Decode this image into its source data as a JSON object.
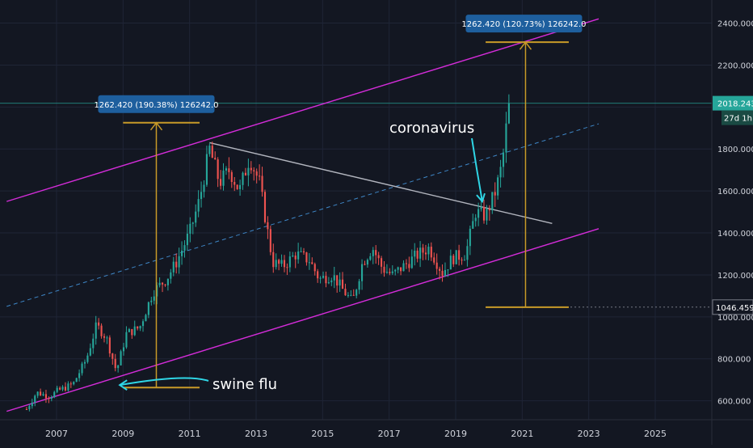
{
  "chart_data": {
    "type": "candlestick",
    "timeframe": "monthly",
    "y_axis": {
      "ticks": [
        600,
        800,
        1000,
        1200,
        1400,
        1600,
        1800,
        2000,
        2200,
        2400
      ],
      "tick_labels": [
        "600.000",
        "800.000",
        "1000.000",
        "1200.000",
        "1400.000",
        "1600.000",
        "1800.000",
        "2000.000",
        "2200.000",
        "2400.000"
      ],
      "range": [
        510,
        2510
      ]
    },
    "x_axis": {
      "ticks": [
        2007,
        2009,
        2011,
        2013,
        2015,
        2017,
        2019,
        2021,
        2023,
        2025
      ],
      "tick_labels": [
        "2007",
        "2009",
        "2011",
        "2013",
        "2015",
        "2017",
        "2019",
        "2021",
        "2023",
        "2025"
      ],
      "range": [
        2005.3,
        2026.7
      ]
    },
    "price_label": "2018.243",
    "countdown_label": "27d 1h",
    "level_label": "1046.459",
    "level_value": 1046.459,
    "last_price": 2018.243,
    "price_keypoints": [
      [
        2006.1,
        560
      ],
      [
        2006.4,
        640
      ],
      [
        2006.8,
        620
      ],
      [
        2007.0,
        645
      ],
      [
        2007.5,
        680
      ],
      [
        2007.9,
        800
      ],
      [
        2008.2,
        960
      ],
      [
        2008.5,
        900
      ],
      [
        2008.8,
        740
      ],
      [
        2009.1,
        920
      ],
      [
        2009.5,
        950
      ],
      [
        2009.9,
        1120
      ],
      [
        2010.3,
        1180
      ],
      [
        2010.6,
        1260
      ],
      [
        2011.0,
        1400
      ],
      [
        2011.3,
        1560
      ],
      [
        2011.6,
        1800
      ],
      [
        2011.9,
        1640
      ],
      [
        2012.2,
        1700
      ],
      [
        2012.5,
        1600
      ],
      [
        2012.8,
        1760
      ],
      [
        2013.1,
        1640
      ],
      [
        2013.3,
        1450
      ],
      [
        2013.5,
        1260
      ],
      [
        2013.8,
        1240
      ],
      [
        2014.2,
        1300
      ],
      [
        2014.6,
        1270
      ],
      [
        2014.9,
        1180
      ],
      [
        2015.3,
        1200
      ],
      [
        2015.6,
        1130
      ],
      [
        2015.9,
        1070
      ],
      [
        2016.2,
        1260
      ],
      [
        2016.5,
        1330
      ],
      [
        2016.8,
        1230
      ],
      [
        2017.1,
        1200
      ],
      [
        2017.5,
        1250
      ],
      [
        2017.8,
        1290
      ],
      [
        2018.2,
        1330
      ],
      [
        2018.6,
        1210
      ],
      [
        2018.9,
        1280
      ],
      [
        2019.3,
        1300
      ],
      [
        2019.6,
        1500
      ],
      [
        2019.9,
        1480
      ],
      [
        2020.2,
        1600
      ],
      [
        2020.4,
        1730
      ],
      [
        2020.6,
        2018
      ]
    ],
    "measurements": [
      {
        "label": "1262.420 (190.38%) 126242.0",
        "x_range": [
          2009.0,
          2011.3
        ],
        "bar_x": 2010.0,
        "from": 663,
        "to": 1925
      },
      {
        "label": "1262.420 (120.73%) 126242.0",
        "x_range": [
          2019.9,
          2022.4
        ],
        "bar_x": 2021.1,
        "from": 1046,
        "to": 2309
      }
    ],
    "trendlines": [
      {
        "name": "channel-upper",
        "from": [
          2005.5,
          1550
        ],
        "to": [
          2023.3,
          2420
        ],
        "color": "#d42cd9"
      },
      {
        "name": "channel-lower",
        "from": [
          2005.5,
          550
        ],
        "to": [
          2023.3,
          1420
        ],
        "color": "#d42cd9"
      },
      {
        "name": "channel-mid",
        "from": [
          2005.5,
          1050
        ],
        "to": [
          2023.3,
          1920
        ],
        "color": "#3e86c6",
        "dashed": true
      },
      {
        "name": "downtrend",
        "from": [
          2011.6,
          1830
        ],
        "to": [
          2021.9,
          1445
        ],
        "color": "#b2b5be"
      }
    ],
    "annotations": [
      {
        "text": "coronavirus",
        "arrow_to": [
          2019.8,
          1550
        ]
      },
      {
        "text": "swine flu",
        "arrow_to": [
          2008.9,
          675
        ]
      }
    ],
    "colors": {
      "up": "#26a69a",
      "down": "#ef5350",
      "background": "#131722",
      "grid": "#1f2536",
      "measure": "#c89a28",
      "label_bg": "#1e5f9e",
      "annotation_arrow": "#2fd6e6"
    }
  }
}
